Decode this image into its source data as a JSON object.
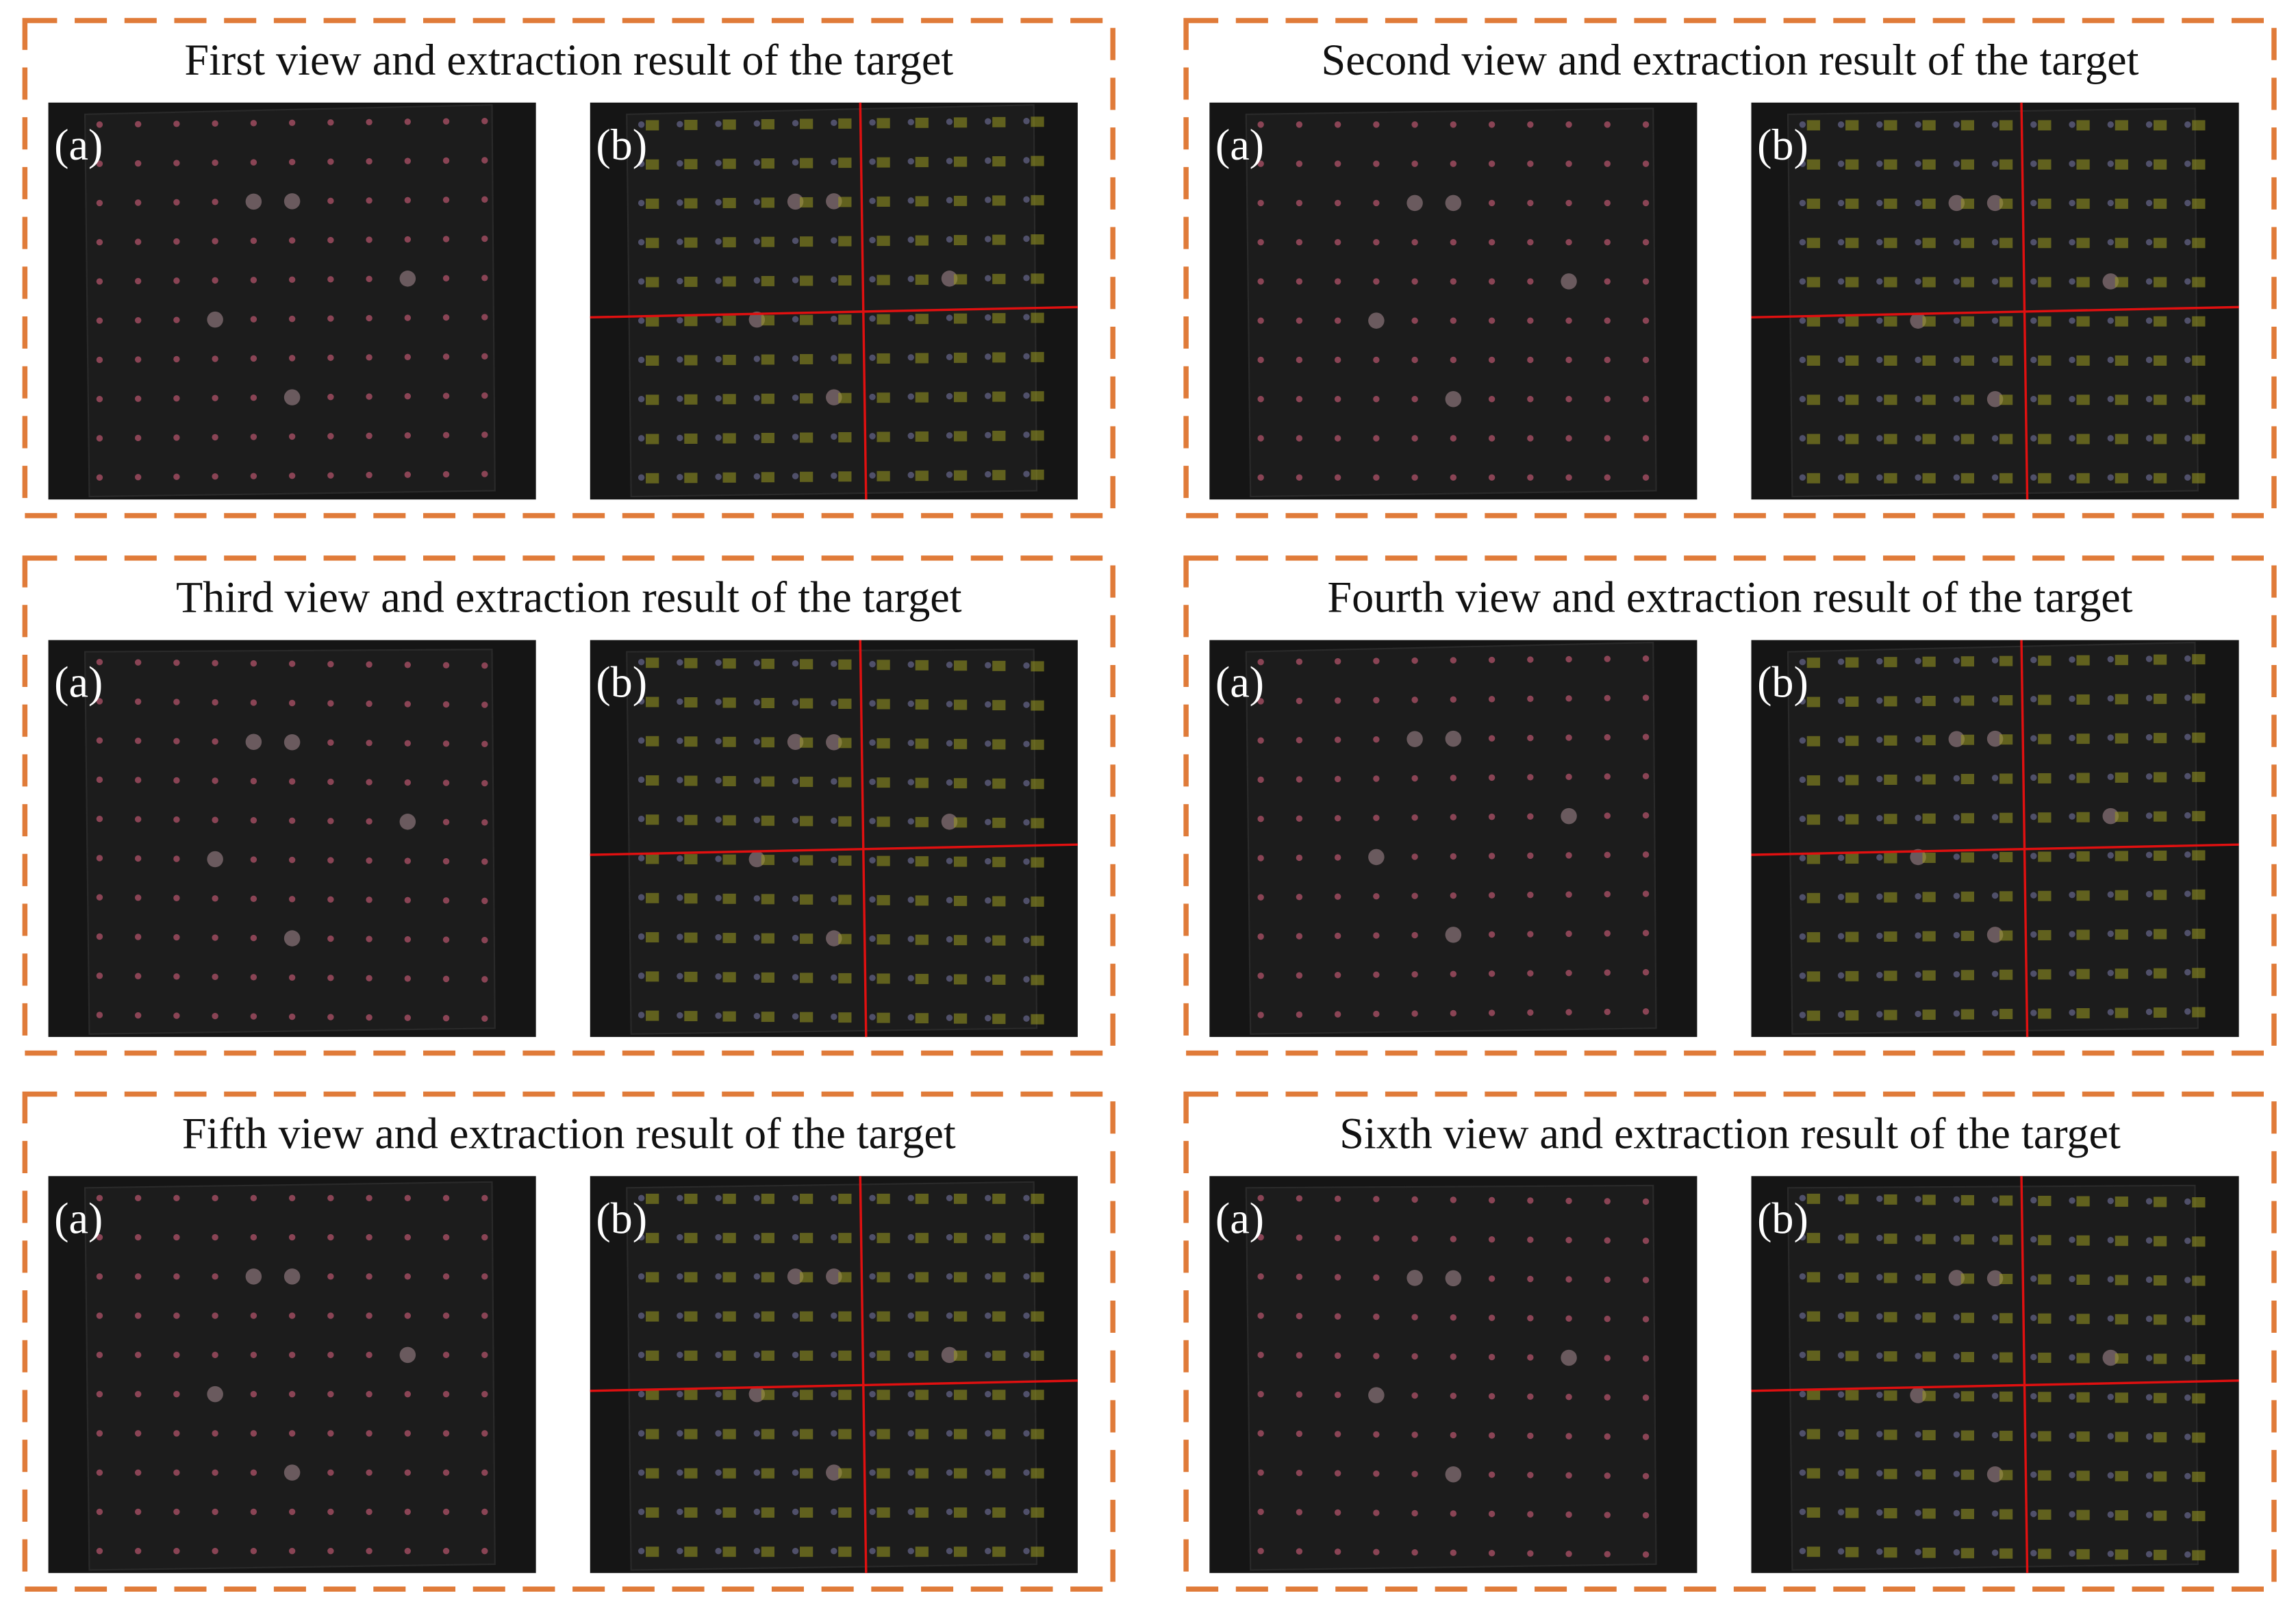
{
  "panels": [
    {
      "title": "First view and extraction result of the target",
      "image_a_label": "(a)",
      "image_b_label": "(b)"
    },
    {
      "title": "Second view and extraction result of the target",
      "image_a_label": "(a)",
      "image_b_label": "(b)"
    },
    {
      "title": "Third view and extraction result of the target",
      "image_a_label": "(a)",
      "image_b_label": "(b)"
    },
    {
      "title": "Fourth view and extraction result of the target",
      "image_a_label": "(a)",
      "image_b_label": "(b)"
    },
    {
      "title": "Fifth view and extraction result of the target",
      "image_a_label": "(a)",
      "image_b_label": "(b)"
    },
    {
      "title": "Sixth view and extraction result of the target",
      "image_a_label": "(a)",
      "image_b_label": "(b)"
    }
  ]
}
